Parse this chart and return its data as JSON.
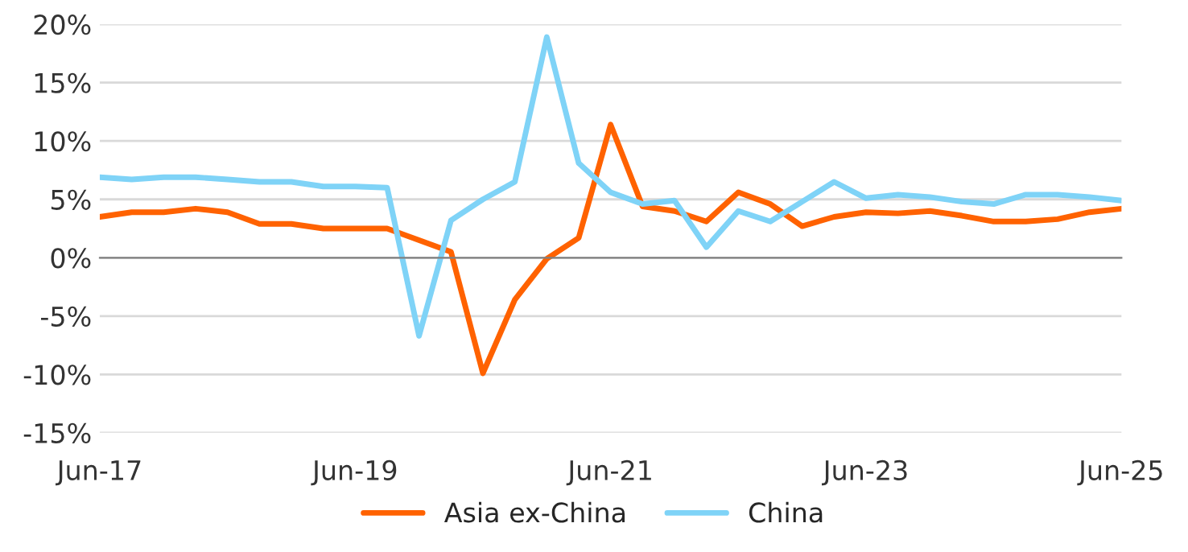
{
  "chart_data": {
    "type": "line",
    "categories": [
      "Jun-17",
      null,
      null,
      null,
      null,
      null,
      null,
      null,
      "Jun-19",
      null,
      null,
      null,
      null,
      null,
      null,
      null,
      "Jun-21",
      null,
      null,
      null,
      null,
      null,
      null,
      null,
      "Jun-23",
      null,
      null,
      null,
      null,
      null,
      null,
      null,
      "Jun-25"
    ],
    "series": [
      {
        "name": "Asia ex-China",
        "color": "#ff6200",
        "values": [
          3.5,
          3.9,
          3.9,
          4.2,
          3.9,
          2.9,
          2.9,
          2.5,
          2.5,
          2.5,
          1.5,
          0.5,
          -9.9,
          -3.6,
          -0.1,
          1.7,
          11.4,
          4.4,
          4.0,
          3.1,
          5.6,
          4.6,
          2.7,
          3.5,
          3.9,
          3.8,
          4.0,
          3.6,
          3.1,
          3.1,
          3.3,
          3.9,
          4.2
        ]
      },
      {
        "name": "China",
        "color": "#7fd3f7",
        "values": [
          6.9,
          6.7,
          6.9,
          6.9,
          6.7,
          6.5,
          6.5,
          6.1,
          6.1,
          6.0,
          -6.7,
          3.2,
          5.0,
          6.5,
          18.9,
          8.1,
          5.6,
          4.6,
          4.9,
          0.9,
          4.0,
          3.1,
          4.8,
          6.5,
          5.1,
          5.4,
          5.2,
          4.8,
          4.6,
          5.4,
          5.4,
          5.2,
          4.9
        ]
      }
    ],
    "ylim": [
      -15,
      20
    ],
    "yticks": [
      {
        "value": -15,
        "label": "-15%"
      },
      {
        "value": -10,
        "label": "-10%"
      },
      {
        "value": -5,
        "label": "-5%"
      },
      {
        "value": 0,
        "label": "0%"
      },
      {
        "value": 5,
        "label": "5%"
      },
      {
        "value": 10,
        "label": "10%"
      },
      {
        "value": 15,
        "label": "15%"
      },
      {
        "value": 20,
        "label": "20%"
      }
    ],
    "grid": "y",
    "legend": "bottom",
    "marker": "none",
    "line_style": "solid"
  }
}
